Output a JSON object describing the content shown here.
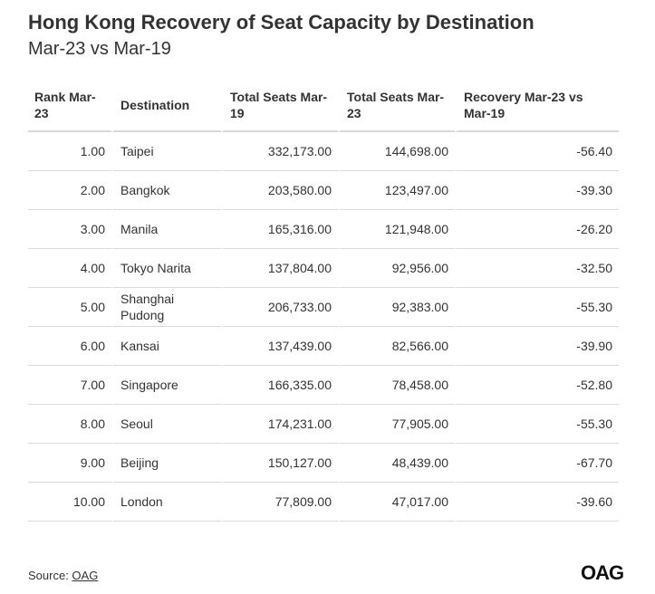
{
  "title": "Hong Kong Recovery of Seat Capacity by Destination",
  "subtitle": "Mar-23 vs Mar-19",
  "source_label": "Source: ",
  "source_link": "OAG",
  "logo": "OAG",
  "chart_data": {
    "type": "table",
    "columns": [
      "Rank Mar-23",
      "Destination",
      "Total Seats Mar-19",
      "Total Seats Mar-23",
      "Recovery Mar-23 vs Mar-19"
    ],
    "rows": [
      [
        "1.00",
        "Taipei",
        "332,173.00",
        "144,698.00",
        "-56.40"
      ],
      [
        "2.00",
        "Bangkok",
        "203,580.00",
        "123,497.00",
        "-39.30"
      ],
      [
        "3.00",
        "Manila",
        "165,316.00",
        "121,948.00",
        "-26.20"
      ],
      [
        "4.00",
        "Tokyo Narita",
        "137,804.00",
        "92,956.00",
        "-32.50"
      ],
      [
        "5.00",
        "Shanghai Pudong",
        "206,733.00",
        "92,383.00",
        "-55.30"
      ],
      [
        "6.00",
        "Kansai",
        "137,439.00",
        "82,566.00",
        "-39.90"
      ],
      [
        "7.00",
        "Singapore",
        "166,335.00",
        "78,458.00",
        "-52.80"
      ],
      [
        "8.00",
        "Seoul",
        "174,231.00",
        "77,905.00",
        "-55.30"
      ],
      [
        "9.00",
        "Beijing",
        "150,127.00",
        "48,439.00",
        "-67.70"
      ],
      [
        "10.00",
        "London",
        "77,809.00",
        "47,017.00",
        "-39.60"
      ]
    ]
  }
}
